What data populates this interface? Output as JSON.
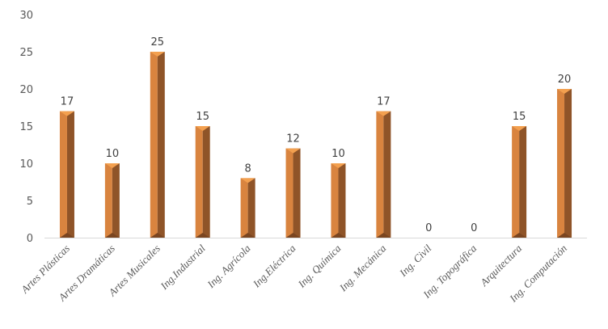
{
  "chart_data": {
    "type": "bar",
    "categories": [
      "Artes Plásticas",
      "Artes Dramáticas",
      "Artes Musicales",
      "Ing.Industrial",
      "Ing. Agrícola",
      "Ing.Eléctrica",
      "Ing. Química",
      "Ing. Mecánica",
      "Ing. Civil",
      "Ing. Topográfica",
      "Arquitectura",
      "Ing. Computación"
    ],
    "values": [
      17,
      10,
      25,
      15,
      8,
      12,
      10,
      17,
      0,
      0,
      15,
      20
    ],
    "data_labels": [
      "17",
      "10",
      "25",
      "15",
      "8",
      "12",
      "10",
      "17",
      "0",
      "0",
      "15",
      "20"
    ],
    "title": "",
    "xlabel": "",
    "ylabel": "",
    "ylim": [
      0,
      30
    ],
    "yticks": [
      "0",
      "5",
      "10",
      "15",
      "20",
      "25",
      "30"
    ],
    "grid": false,
    "legend": "none",
    "colors": {
      "bar_light": "#d9843f",
      "bar_dark": "#8f5428",
      "bar_top": "#f3a04f",
      "axis": "#d9d9d9"
    }
  }
}
